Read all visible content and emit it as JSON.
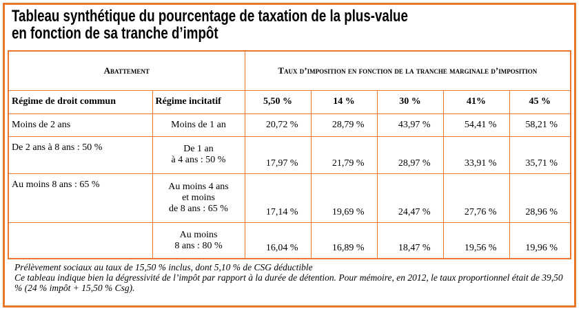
{
  "title": {
    "line1": "Tableau synthétique du pourcentage de taxation de la plus-value",
    "line2": "en fonction de sa tranche d’impôt"
  },
  "table": {
    "group_headers": {
      "abattement": "Abattement",
      "taux": "Taux d’imposition en fonction de la tranche marginale d’imposition"
    },
    "column_headers": [
      "Régime de droit commun",
      "Régime incitatif",
      "5,50 %",
      "14 %",
      "30 %",
      "41%",
      "45 %"
    ],
    "rows": [
      {
        "droit_commun": "Moins de 2 ans",
        "incitatif_lines": [
          "Moins de 1 an"
        ],
        "values": [
          "20,72 %",
          "28,79 %",
          "43,97 %",
          "54,41 %",
          "58,21 %"
        ]
      },
      {
        "droit_commun": "De 2 ans à 8 ans : 50 %",
        "incitatif_lines": [
          "De 1 an",
          "à 4 ans : 50 %"
        ],
        "values": [
          "17,97 %",
          "21,79 %",
          "28,97 %",
          "33,91 %",
          "35,71 %"
        ]
      },
      {
        "droit_commun": "Au moins 8 ans : 65 %",
        "incitatif_lines": [
          "Au moins 4 ans",
          "et moins",
          "de 8 ans : 65 %"
        ],
        "values": [
          "17,14 %",
          "19,69 %",
          "24,47 %",
          "27,76 %",
          "28,96 %"
        ]
      },
      {
        "droit_commun": "",
        "incitatif_lines": [
          "Au moins",
          "8 ans : 80 %"
        ],
        "values": [
          "16,04 %",
          "16,89 %",
          "18,47 %",
          "19,56 %",
          "19,96 %"
        ]
      }
    ]
  },
  "footnote": {
    "line1": "Prélèvement sociaux au taux de 15,50 % inclus, dont 5,10 % de CSG déductible",
    "line2": "Ce tableau indique bien la dégressivité de l’impôt par rapport à la durée de détention. Pour mémoire, en 2012, le taux proportionnel était de 39,50 % (24 % impôt + 15,50 % Csg)."
  },
  "colors": {
    "border": "#e8752a",
    "text": "#000000"
  }
}
